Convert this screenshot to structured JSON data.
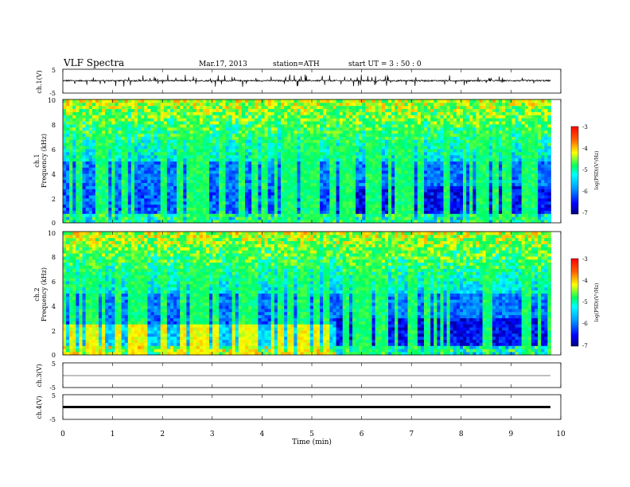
{
  "header": {
    "title": "VLF Spectra",
    "date": "Mar.17, 2013",
    "station": "station=ATH",
    "start": "start  UT =   3 : 50 : 0"
  },
  "chart_data": [
    {
      "type": "line",
      "panel": "ch1-waveform",
      "ylabel": "ch.1(V)",
      "yticks": [
        "5",
        "-5"
      ],
      "ylim": [
        -5,
        5
      ],
      "description_values": {
        "baseline": 0.2,
        "noise_amplitude": 0.6,
        "spike_amplitude": 1.6
      }
    },
    {
      "type": "heatmap",
      "panel": "ch1-spectrogram",
      "ylabel_channel": "ch.1",
      "ylabel": "Frequency (kHz)",
      "yticks": [
        "10",
        "8",
        "6",
        "4",
        "2",
        "0"
      ],
      "ylim": [
        0,
        10
      ],
      "xlim": [
        0,
        9.8
      ],
      "colorbar": {
        "label": "log(PSD)(V²/Hz)",
        "ticks": [
          "-3",
          "-4",
          "-5",
          "-6",
          "-7"
        ],
        "range": [
          -7,
          -3
        ]
      },
      "regime_change_min": 5.5
    },
    {
      "type": "heatmap",
      "panel": "ch2-spectrogram",
      "ylabel_channel": "ch.2",
      "ylabel": "Frequency (kHz)",
      "yticks": [
        "10",
        "8",
        "6",
        "4",
        "2",
        "0"
      ],
      "ylim": [
        0,
        10
      ],
      "xlim": [
        0,
        9.8
      ],
      "colorbar": {
        "label": "log(PSD)(V²/Hz)",
        "ticks": [
          "-3",
          "-4",
          "-5",
          "-6",
          "-7"
        ],
        "range": [
          -7,
          -3
        ]
      },
      "regime_change_min": 5.5
    },
    {
      "type": "line",
      "panel": "ch3-waveform",
      "ylabel": "ch.3(V)",
      "yticks": [
        "5",
        "-5"
      ],
      "ylim": [
        -5,
        5
      ],
      "description_values": {
        "baseline": -1
      }
    },
    {
      "type": "line",
      "panel": "ch4-waveform",
      "ylabel": "ch.4(V)",
      "yticks": [
        "5",
        "-5"
      ],
      "ylim": [
        -5,
        5
      ],
      "description_values": {
        "baseline": 0
      }
    }
  ],
  "xaxis": {
    "label": "Time  (min)",
    "ticks": [
      "0",
      "1",
      "2",
      "3",
      "4",
      "5",
      "6",
      "7",
      "8",
      "9",
      "10"
    ],
    "xlim": [
      0,
      10
    ]
  }
}
